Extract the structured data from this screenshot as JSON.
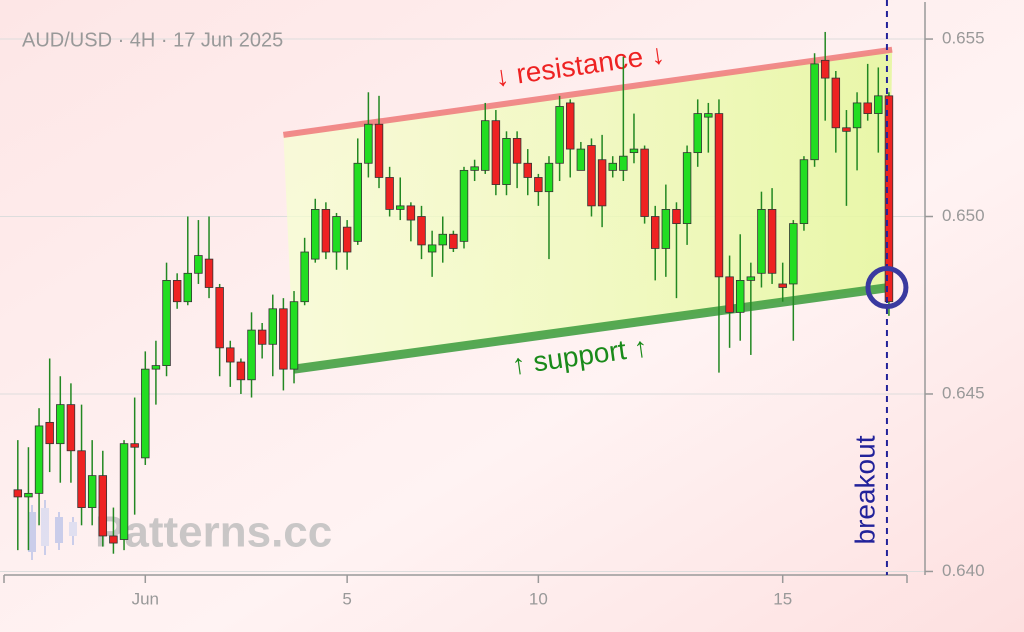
{
  "chart_data": {
    "type": "candlestick",
    "title": "AUD/USD · 4H · 17 Jun 2025",
    "watermark": "Patterns.cc",
    "open": [
      0.6423,
      0.6421,
      0.6422,
      0.6442,
      0.6436,
      0.6447,
      0.6434,
      0.6418,
      0.6427,
      0.641,
      0.6409,
      0.6436,
      0.6432,
      0.6457,
      0.6458,
      0.6482,
      0.6476,
      0.6484,
      0.6488,
      0.648,
      0.6463,
      0.6459,
      0.6454,
      0.6468,
      0.6464,
      0.6474,
      0.6457,
      0.6476,
      0.6488,
      0.6502,
      0.649,
      0.6497,
      0.6493,
      0.6515,
      0.6526,
      0.6511,
      0.6502,
      0.6503,
      0.65,
      0.649,
      0.6492,
      0.6495,
      0.6493,
      0.6513,
      0.6513,
      0.6527,
      0.6509,
      0.6522,
      0.6515,
      0.6511,
      0.6507,
      0.6515,
      0.6532,
      0.6513,
      0.652,
      0.6516,
      0.6513,
      0.6513,
      0.6518,
      0.6519,
      0.65,
      0.6491,
      0.6502,
      0.6498,
      0.6518,
      0.6528,
      0.6529,
      0.6483,
      0.6473,
      0.6482,
      0.6484,
      0.6502,
      0.6481,
      0.6481,
      0.6498,
      0.6516,
      0.6544,
      0.6539,
      0.6525,
      0.6525,
      0.6532,
      0.6529,
      0.6534
    ],
    "high": [
      0.6437,
      0.6435,
      0.6446,
      0.646,
      0.6455,
      0.6453,
      0.6447,
      0.6437,
      0.6434,
      0.6418,
      0.6437,
      0.6449,
      0.6462,
      0.6465,
      0.6487,
      0.6484,
      0.65,
      0.6499,
      0.65,
      0.6481,
      0.6465,
      0.646,
      0.6473,
      0.647,
      0.6478,
      0.6477,
      0.6479,
      0.6494,
      0.6505,
      0.6504,
      0.6501,
      0.6499,
      0.6522,
      0.6535,
      0.6534,
      0.6514,
      0.6511,
      0.6504,
      0.6503,
      0.6496,
      0.65,
      0.6496,
      0.6514,
      0.6516,
      0.6532,
      0.653,
      0.6524,
      0.6524,
      0.6519,
      0.6512,
      0.6517,
      0.6534,
      0.6533,
      0.6521,
      0.6522,
      0.6523,
      0.6517,
      0.6545,
      0.6529,
      0.652,
      0.6503,
      0.6509,
      0.6504,
      0.652,
      0.6533,
      0.6532,
      0.6533,
      0.6489,
      0.6495,
      0.6487,
      0.6507,
      0.6508,
      0.6487,
      0.6499,
      0.6517,
      0.6546,
      0.6552,
      0.6541,
      0.653,
      0.6535,
      0.6543,
      0.6542,
      0.6535
    ],
    "low": [
      0.6406,
      0.6406,
      0.6413,
      0.6428,
      0.6425,
      0.6425,
      0.6413,
      0.6413,
      0.6407,
      0.6405,
      0.6406,
      0.6416,
      0.643,
      0.6447,
      0.6455,
      0.6474,
      0.6475,
      0.6481,
      0.6477,
      0.6455,
      0.6452,
      0.645,
      0.6449,
      0.646,
      0.6455,
      0.6451,
      0.6453,
      0.6475,
      0.6487,
      0.6488,
      0.6485,
      0.6485,
      0.6492,
      0.6511,
      0.6508,
      0.65,
      0.6499,
      0.6493,
      0.6488,
      0.6483,
      0.6487,
      0.649,
      0.6491,
      0.651,
      0.6512,
      0.6506,
      0.6506,
      0.6508,
      0.6506,
      0.6503,
      0.6488,
      0.651,
      0.6511,
      0.6513,
      0.65,
      0.6497,
      0.6511,
      0.651,
      0.6515,
      0.6498,
      0.6482,
      0.6483,
      0.6477,
      0.6492,
      0.6514,
      0.6518,
      0.6456,
      0.6463,
      0.6465,
      0.6461,
      0.648,
      0.6481,
      0.6476,
      0.6465,
      0.6496,
      0.6514,
      0.6527,
      0.6518,
      0.6503,
      0.6513,
      0.6527,
      0.6518,
      0.6472
    ],
    "close": [
      0.6421,
      0.6422,
      0.6441,
      0.6436,
      0.6447,
      0.6434,
      0.6418,
      0.6427,
      0.641,
      0.6408,
      0.6436,
      0.6435,
      0.6457,
      0.6458,
      0.6482,
      0.6476,
      0.6484,
      0.6489,
      0.648,
      0.6463,
      0.6459,
      0.6454,
      0.6468,
      0.6464,
      0.6474,
      0.6457,
      0.6476,
      0.649,
      0.6502,
      0.649,
      0.65,
      0.649,
      0.6515,
      0.6526,
      0.6511,
      0.6502,
      0.6503,
      0.6499,
      0.6492,
      0.6492,
      0.6495,
      0.6491,
      0.6513,
      0.6514,
      0.6527,
      0.6509,
      0.6522,
      0.6515,
      0.6511,
      0.6507,
      0.6515,
      0.6531,
      0.6519,
      0.6519,
      0.6503,
      0.6503,
      0.6515,
      0.6517,
      0.6519,
      0.65,
      0.6491,
      0.6502,
      0.6498,
      0.6518,
      0.6529,
      0.6529,
      0.6483,
      0.6473,
      0.6482,
      0.6483,
      0.6502,
      0.6484,
      0.648,
      0.6498,
      0.6516,
      0.6543,
      0.6539,
      0.6525,
      0.6524,
      0.6532,
      0.6529,
      0.6534,
      0.6476
    ],
    "up_color": "#22dd22",
    "down_color": "#ee2222",
    "xlim": [
      -1.3,
      83.7
    ],
    "xticks": [
      {
        "value": 12,
        "label": "Jun"
      },
      {
        "value": 31,
        "label": "5"
      },
      {
        "value": 49,
        "label": "10"
      },
      {
        "value": 72,
        "label": "15"
      }
    ],
    "ylim": [
      0.6399,
      0.6561
    ],
    "yticks": [
      {
        "value": 0.64,
        "label": "0.640"
      },
      {
        "value": 0.645,
        "label": "0.645"
      },
      {
        "value": 0.65,
        "label": "0.650"
      },
      {
        "value": 0.655,
        "label": "0.655"
      }
    ],
    "grid": true,
    "resistance": {
      "label": "↓ resistance ↓",
      "color": "#f08080",
      "x": [
        25,
        82.3
      ],
      "y": [
        0.6523,
        0.6547
      ]
    },
    "support": {
      "label": "↑ support ↑",
      "color": "#44a044",
      "x": [
        26,
        82
      ],
      "y": [
        0.6457,
        0.648
      ]
    },
    "breakout": {
      "label": "breakout",
      "color": "#22229a",
      "x": 82,
      "y": 0.648
    }
  }
}
